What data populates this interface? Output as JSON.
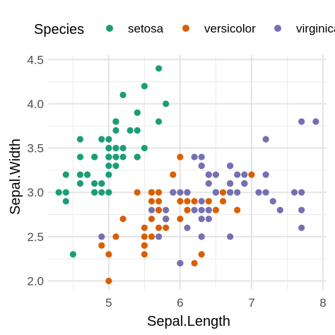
{
  "chart_data": {
    "type": "scatter",
    "xlabel": "Sepal.Length",
    "ylabel": "Sepal.Width",
    "xlim": [
      4.15,
      8.05
    ],
    "ylim": [
      1.9,
      4.55
    ],
    "x_ticks": [
      5,
      6,
      7,
      8
    ],
    "y_ticks": [
      "2.0",
      "2.5",
      "3.0",
      "3.5",
      "4.0",
      "4.5"
    ],
    "grid": true,
    "legend": {
      "title": "Species",
      "position": "top"
    },
    "series": [
      {
        "name": "setosa",
        "color": "#1b9e77",
        "points": [
          [
            5.1,
            3.5
          ],
          [
            4.9,
            3.0
          ],
          [
            4.7,
            3.2
          ],
          [
            4.6,
            3.1
          ],
          [
            5.0,
            3.6
          ],
          [
            5.4,
            3.9
          ],
          [
            4.6,
            3.4
          ],
          [
            5.0,
            3.4
          ],
          [
            4.4,
            2.9
          ],
          [
            4.9,
            3.1
          ],
          [
            5.4,
            3.7
          ],
          [
            4.8,
            3.4
          ],
          [
            4.8,
            3.0
          ],
          [
            4.3,
            3.0
          ],
          [
            5.8,
            4.0
          ],
          [
            5.7,
            4.4
          ],
          [
            5.4,
            3.9
          ],
          [
            5.1,
            3.5
          ],
          [
            5.7,
            3.8
          ],
          [
            5.1,
            3.8
          ],
          [
            5.4,
            3.4
          ],
          [
            5.1,
            3.7
          ],
          [
            4.6,
            3.6
          ],
          [
            5.1,
            3.3
          ],
          [
            4.8,
            3.4
          ],
          [
            5.0,
            3.0
          ],
          [
            5.0,
            3.4
          ],
          [
            5.2,
            3.5
          ],
          [
            5.2,
            3.4
          ],
          [
            4.7,
            3.2
          ],
          [
            4.8,
            3.1
          ],
          [
            5.4,
            3.4
          ],
          [
            5.2,
            4.1
          ],
          [
            5.5,
            4.2
          ],
          [
            4.9,
            3.1
          ],
          [
            5.0,
            3.2
          ],
          [
            5.5,
            3.5
          ],
          [
            4.9,
            3.6
          ],
          [
            4.4,
            3.0
          ],
          [
            5.1,
            3.4
          ],
          [
            5.0,
            3.5
          ],
          [
            4.5,
            2.3
          ],
          [
            4.4,
            3.2
          ],
          [
            5.0,
            3.5
          ],
          [
            5.1,
            3.8
          ],
          [
            4.8,
            3.0
          ],
          [
            5.1,
            3.8
          ],
          [
            4.6,
            3.2
          ],
          [
            5.3,
            3.7
          ],
          [
            5.0,
            3.3
          ]
        ]
      },
      {
        "name": "versicolor",
        "color": "#d95f02",
        "points": [
          [
            7.0,
            3.2
          ],
          [
            6.4,
            3.2
          ],
          [
            6.9,
            3.1
          ],
          [
            5.5,
            2.3
          ],
          [
            6.5,
            2.8
          ],
          [
            5.7,
            2.8
          ],
          [
            6.3,
            3.3
          ],
          [
            4.9,
            2.4
          ],
          [
            6.6,
            2.9
          ],
          [
            5.2,
            2.7
          ],
          [
            5.0,
            2.0
          ],
          [
            5.9,
            3.0
          ],
          [
            6.0,
            2.2
          ],
          [
            6.1,
            2.9
          ],
          [
            5.6,
            2.9
          ],
          [
            6.7,
            3.1
          ],
          [
            5.6,
            3.0
          ],
          [
            5.8,
            2.7
          ],
          [
            6.2,
            2.2
          ],
          [
            5.6,
            2.5
          ],
          [
            5.9,
            3.2
          ],
          [
            6.1,
            2.8
          ],
          [
            6.3,
            2.5
          ],
          [
            6.1,
            2.8
          ],
          [
            6.4,
            2.9
          ],
          [
            6.6,
            3.0
          ],
          [
            6.8,
            2.8
          ],
          [
            6.7,
            3.0
          ],
          [
            6.0,
            2.9
          ],
          [
            5.7,
            2.6
          ],
          [
            5.5,
            2.4
          ],
          [
            5.5,
            2.4
          ],
          [
            5.8,
            2.7
          ],
          [
            6.0,
            2.7
          ],
          [
            5.4,
            3.0
          ],
          [
            6.0,
            3.4
          ],
          [
            6.7,
            3.1
          ],
          [
            6.3,
            2.3
          ],
          [
            5.6,
            3.0
          ],
          [
            5.5,
            2.5
          ],
          [
            5.5,
            2.6
          ],
          [
            6.1,
            3.0
          ],
          [
            5.8,
            2.6
          ],
          [
            5.0,
            2.3
          ],
          [
            5.6,
            2.7
          ],
          [
            5.7,
            3.0
          ],
          [
            5.7,
            2.9
          ],
          [
            6.2,
            2.9
          ],
          [
            5.1,
            2.5
          ],
          [
            5.7,
            2.8
          ]
        ]
      },
      {
        "name": "virginica",
        "color": "#7570b3",
        "points": [
          [
            6.3,
            3.3
          ],
          [
            5.8,
            2.7
          ],
          [
            7.1,
            3.0
          ],
          [
            6.3,
            2.9
          ],
          [
            6.5,
            3.0
          ],
          [
            7.6,
            3.0
          ],
          [
            4.9,
            2.5
          ],
          [
            7.3,
            2.9
          ],
          [
            6.7,
            2.5
          ],
          [
            7.2,
            3.6
          ],
          [
            6.5,
            3.2
          ],
          [
            6.4,
            2.7
          ],
          [
            6.8,
            3.0
          ],
          [
            5.7,
            2.5
          ],
          [
            5.8,
            2.8
          ],
          [
            6.4,
            3.2
          ],
          [
            6.5,
            3.0
          ],
          [
            7.7,
            3.8
          ],
          [
            7.7,
            2.6
          ],
          [
            6.0,
            2.2
          ],
          [
            6.9,
            3.2
          ],
          [
            5.6,
            2.8
          ],
          [
            7.7,
            2.8
          ],
          [
            6.3,
            2.7
          ],
          [
            6.7,
            3.3
          ],
          [
            7.2,
            3.2
          ],
          [
            6.2,
            2.8
          ],
          [
            6.1,
            3.0
          ],
          [
            6.4,
            2.8
          ],
          [
            7.2,
            3.0
          ],
          [
            7.4,
            2.8
          ],
          [
            7.9,
            3.8
          ],
          [
            6.4,
            2.8
          ],
          [
            6.3,
            2.8
          ],
          [
            6.1,
            2.6
          ],
          [
            7.7,
            3.0
          ],
          [
            6.3,
            3.4
          ],
          [
            6.4,
            3.1
          ],
          [
            6.0,
            3.0
          ],
          [
            6.9,
            3.1
          ],
          [
            6.7,
            3.1
          ],
          [
            6.9,
            3.1
          ],
          [
            5.8,
            2.7
          ],
          [
            6.8,
            3.2
          ],
          [
            6.7,
            3.3
          ],
          [
            6.7,
            3.0
          ],
          [
            6.3,
            2.5
          ],
          [
            6.5,
            3.0
          ],
          [
            6.2,
            3.4
          ],
          [
            5.9,
            3.0
          ]
        ]
      }
    ]
  }
}
